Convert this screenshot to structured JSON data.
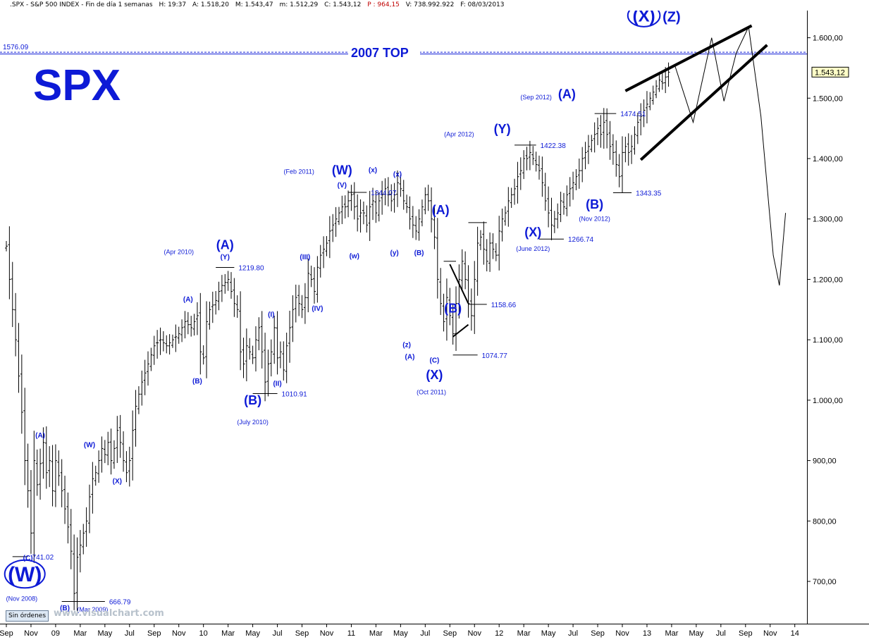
{
  "header": {
    "symbol": ".SPX - S&P 500 INDEX - Fin de día 1 semanas",
    "h": "H: 19:37",
    "a": "A: 1.518,20",
    "m": "M: 1.543,47",
    "min": "m: 1.512,29",
    "c": "C: 1.543,12",
    "p": "P : 964,15",
    "v": "V: 738.992.922",
    "f": "F: 08/03/2013"
  },
  "title": "SPX",
  "top_line": {
    "label": "2007 TOP",
    "value_text": "1576.09",
    "value": 1576.09
  },
  "current_price": {
    "label": "1.543,12",
    "value": 1543.12
  },
  "toolbar": {
    "orders_label": "Sin órdenes"
  },
  "watermark": "www.visualchart.com",
  "colors": {
    "wave": "#0d1ad6",
    "price_bar": "#000000",
    "background": "#ffffff"
  },
  "chart_data": {
    "type": "bar",
    "ylim": [
      630,
      1645
    ],
    "y_ticks": [
      {
        "v": 700,
        "label": "700,00"
      },
      {
        "v": 800,
        "label": "800,00"
      },
      {
        "v": 900,
        "label": "900,00"
      },
      {
        "v": 1000,
        "label": "1.000,00"
      },
      {
        "v": 1100,
        "label": "1.100,00"
      },
      {
        "v": 1200,
        "label": "1.200,00"
      },
      {
        "v": 1300,
        "label": "1.300,00"
      },
      {
        "v": 1400,
        "label": "1.400,00"
      },
      {
        "v": 1500,
        "label": "1.500,00"
      },
      {
        "v": 1600,
        "label": "1.600,00"
      }
    ],
    "x_ticks": [
      {
        "t": 0,
        "label": "Sep"
      },
      {
        "t": 8,
        "label": "Nov"
      },
      {
        "t": 16,
        "label": "09"
      },
      {
        "t": 24,
        "label": "Mar"
      },
      {
        "t": 32,
        "label": "May"
      },
      {
        "t": 40,
        "label": "Jul"
      },
      {
        "t": 48,
        "label": "Sep"
      },
      {
        "t": 56,
        "label": "Nov"
      },
      {
        "t": 64,
        "label": "10"
      },
      {
        "t": 72,
        "label": "Mar"
      },
      {
        "t": 80,
        "label": "May"
      },
      {
        "t": 88,
        "label": "Jul"
      },
      {
        "t": 96,
        "label": "Sep"
      },
      {
        "t": 104,
        "label": "Nov"
      },
      {
        "t": 112,
        "label": "11"
      },
      {
        "t": 120,
        "label": "Mar"
      },
      {
        "t": 128,
        "label": "May"
      },
      {
        "t": 136,
        "label": "Jul"
      },
      {
        "t": 144,
        "label": "Sep"
      },
      {
        "t": 152,
        "label": "Nov"
      },
      {
        "t": 160,
        "label": "12"
      },
      {
        "t": 168,
        "label": "Mar"
      },
      {
        "t": 176,
        "label": "May"
      },
      {
        "t": 184,
        "label": "Jul"
      },
      {
        "t": 192,
        "label": "Sep"
      },
      {
        "t": 200,
        "label": "Nov"
      },
      {
        "t": 208,
        "label": "13"
      },
      {
        "t": 216,
        "label": "Mar"
      },
      {
        "t": 224,
        "label": "May"
      },
      {
        "t": 232,
        "label": "Jul"
      },
      {
        "t": 240,
        "label": "Sep"
      },
      {
        "t": 248,
        "label": "Nov"
      },
      {
        "t": 256,
        "label": "14"
      }
    ],
    "anchors": [
      [
        0,
        1255
      ],
      [
        1,
        1200
      ],
      [
        3,
        1100
      ],
      [
        5,
        980
      ],
      [
        6,
        900
      ],
      [
        7,
        850
      ],
      [
        8,
        780
      ],
      [
        9,
        900
      ],
      [
        10,
        860
      ],
      [
        12,
        930
      ],
      [
        13,
        880
      ],
      [
        14,
        900
      ],
      [
        15,
        850
      ],
      [
        16,
        900
      ],
      [
        18,
        850
      ],
      [
        20,
        790
      ],
      [
        21,
        750
      ],
      [
        22,
        680
      ],
      [
        23,
        740
      ],
      [
        24,
        760
      ],
      [
        26,
        800
      ],
      [
        27,
        840
      ],
      [
        28,
        870
      ],
      [
        29,
        880
      ],
      [
        30,
        900
      ],
      [
        31,
        920
      ],
      [
        32,
        910
      ],
      [
        33,
        930
      ],
      [
        34,
        900
      ],
      [
        35,
        920
      ],
      [
        36,
        950
      ],
      [
        37,
        930
      ],
      [
        38,
        900
      ],
      [
        39,
        880
      ],
      [
        40,
        900
      ],
      [
        41,
        950
      ],
      [
        42,
        990
      ],
      [
        44,
        1030
      ],
      [
        46,
        1060
      ],
      [
        48,
        1090
      ],
      [
        50,
        1100
      ],
      [
        52,
        1090
      ],
      [
        54,
        1100
      ],
      [
        56,
        1110
      ],
      [
        58,
        1130
      ],
      [
        60,
        1120
      ],
      [
        62,
        1140
      ],
      [
        63,
        1080
      ],
      [
        64,
        1070
      ],
      [
        65,
        1130
      ],
      [
        66,
        1150
      ],
      [
        68,
        1165
      ],
      [
        69,
        1180
      ],
      [
        70,
        1190
      ],
      [
        72,
        1200
      ],
      [
        73,
        1180
      ],
      [
        74,
        1160
      ],
      [
        75,
        1150
      ],
      [
        76,
        1080
      ],
      [
        77,
        1060
      ],
      [
        78,
        1090
      ],
      [
        80,
        1070
      ],
      [
        81,
        1100
      ],
      [
        82,
        1120
      ],
      [
        83,
        1080
      ],
      [
        84,
        1030
      ],
      [
        85,
        1060
      ],
      [
        86,
        1080
      ],
      [
        87,
        1120
      ],
      [
        88,
        1070
      ],
      [
        89,
        1080
      ],
      [
        90,
        1050
      ],
      [
        91,
        1090
      ],
      [
        92,
        1120
      ],
      [
        93,
        1150
      ],
      [
        94,
        1170
      ],
      [
        96,
        1150
      ],
      [
        97,
        1170
      ],
      [
        98,
        1210
      ],
      [
        99,
        1200
      ],
      [
        100,
        1180
      ],
      [
        101,
        1220
      ],
      [
        102,
        1240
      ],
      [
        103,
        1250
      ],
      [
        104,
        1260
      ],
      [
        105,
        1280
      ],
      [
        107,
        1300
      ],
      [
        108,
        1310
      ],
      [
        109,
        1320
      ],
      [
        110,
        1320
      ],
      [
        111,
        1330
      ],
      [
        112,
        1340
      ],
      [
        113,
        1320
      ],
      [
        114,
        1300
      ],
      [
        115,
        1310
      ],
      [
        116,
        1310
      ],
      [
        117,
        1290
      ],
      [
        118,
        1320
      ],
      [
        119,
        1330
      ],
      [
        120,
        1310
      ],
      [
        121,
        1330
      ],
      [
        122,
        1340
      ],
      [
        123,
        1350
      ],
      [
        124,
        1340
      ],
      [
        125,
        1330
      ],
      [
        126,
        1340
      ],
      [
        127,
        1360
      ],
      [
        128,
        1350
      ],
      [
        129,
        1330
      ],
      [
        130,
        1320
      ],
      [
        131,
        1300
      ],
      [
        132,
        1290
      ],
      [
        133,
        1280
      ],
      [
        134,
        1300
      ],
      [
        135,
        1320
      ],
      [
        136,
        1340
      ],
      [
        137,
        1330
      ],
      [
        138,
        1300
      ],
      [
        139,
        1270
      ],
      [
        140,
        1200
      ],
      [
        141,
        1160
      ],
      [
        142,
        1130
      ],
      [
        143,
        1170
      ],
      [
        144,
        1140
      ],
      [
        145,
        1110
      ],
      [
        146,
        1160
      ],
      [
        147,
        1200
      ],
      [
        148,
        1230
      ],
      [
        149,
        1200
      ],
      [
        150,
        1160
      ],
      [
        151,
        1140
      ],
      [
        152,
        1200
      ],
      [
        153,
        1260
      ],
      [
        154,
        1270
      ],
      [
        155,
        1250
      ],
      [
        156,
        1230
      ],
      [
        157,
        1260
      ],
      [
        158,
        1250
      ],
      [
        159,
        1240
      ],
      [
        160,
        1280
      ],
      [
        161,
        1300
      ],
      [
        162,
        1310
      ],
      [
        163,
        1330
      ],
      [
        164,
        1340
      ],
      [
        165,
        1350
      ],
      [
        166,
        1370
      ],
      [
        167,
        1380
      ],
      [
        168,
        1400
      ],
      [
        169,
        1400
      ],
      [
        170,
        1410
      ],
      [
        171,
        1400
      ],
      [
        172,
        1390
      ],
      [
        173,
        1380
      ],
      [
        174,
        1360
      ],
      [
        175,
        1330
      ],
      [
        176,
        1310
      ],
      [
        177,
        1290
      ],
      [
        178,
        1300
      ],
      [
        179,
        1310
      ],
      [
        180,
        1330
      ],
      [
        181,
        1320
      ],
      [
        182,
        1340
      ],
      [
        183,
        1350
      ],
      [
        184,
        1360
      ],
      [
        185,
        1370
      ],
      [
        186,
        1380
      ],
      [
        187,
        1400
      ],
      [
        188,
        1410
      ],
      [
        189,
        1420
      ],
      [
        190,
        1430
      ],
      [
        191,
        1440
      ],
      [
        192,
        1450
      ],
      [
        193,
        1440
      ],
      [
        194,
        1460
      ],
      [
        195,
        1440
      ],
      [
        196,
        1420
      ],
      [
        197,
        1410
      ],
      [
        198,
        1390
      ],
      [
        199,
        1370
      ],
      [
        200,
        1410
      ],
      [
        201,
        1420
      ],
      [
        202,
        1410
      ],
      [
        203,
        1420
      ],
      [
        204,
        1440
      ],
      [
        205,
        1460
      ],
      [
        206,
        1470
      ],
      [
        207,
        1480
      ],
      [
        208,
        1490
      ],
      [
        209,
        1500
      ],
      [
        210,
        1510
      ],
      [
        211,
        1520
      ],
      [
        212,
        1530
      ],
      [
        213,
        1525
      ],
      [
        214,
        1535
      ],
      [
        215,
        1543
      ]
    ],
    "projection": {
      "wave_path": [
        [
          217,
          1555
        ],
        [
          223,
          1460
        ],
        [
          229,
          1600
        ],
        [
          233,
          1495
        ],
        [
          237,
          1575
        ],
        [
          241,
          1618
        ],
        [
          245,
          1470
        ],
        [
          249,
          1240
        ],
        [
          251,
          1190
        ],
        [
          253,
          1310
        ]
      ],
      "lines": [
        [
          [
            201,
            1512
          ],
          [
            242,
            1620
          ]
        ],
        [
          [
            206,
            1398
          ],
          [
            247,
            1588
          ]
        ],
        [
          [
            145,
            1105
          ],
          [
            150,
            1125
          ]
        ],
        [
          [
            144,
            1225
          ],
          [
            150,
            1160
          ]
        ]
      ]
    },
    "pivot_lines": [
      {
        "t0": 2,
        "t1": 7,
        "v": 741.02,
        "label": "741.02"
      },
      {
        "t0": 18,
        "t1": 32,
        "v": 666.79,
        "label": "666.79"
      },
      {
        "t0": 68,
        "t1": 74,
        "v": 1219.8,
        "label": "1219.80"
      },
      {
        "t0": 80,
        "t1": 88,
        "v": 1010.91,
        "label": "1010.91"
      },
      {
        "t0": 111,
        "t1": 117,
        "v": 1344.07,
        "label": "1344.07"
      },
      {
        "t0": 145,
        "t1": 153,
        "v": 1074.77,
        "label": "1074.77"
      },
      {
        "t0": 150,
        "t1": 156,
        "v": 1294,
        "label": ""
      },
      {
        "t0": 150,
        "t1": 156,
        "v": 1158.66,
        "label": "1158.66"
      },
      {
        "t0": 165,
        "t1": 172,
        "v": 1422.38,
        "label": "1422.38"
      },
      {
        "t0": 173,
        "t1": 181,
        "v": 1266.74,
        "label": "1266.74"
      },
      {
        "t0": 191,
        "t1": 198,
        "v": 1474.51,
        "label": "1474.51"
      },
      {
        "t0": 197,
        "t1": 203,
        "v": 1343.35,
        "label": "1343.35"
      },
      {
        "t0": 142,
        "t1": 146,
        "v": 1230,
        "label": ""
      }
    ],
    "annotations": [
      {
        "t": 7,
        "v": 735,
        "text": "(C)",
        "size": 10
      },
      {
        "t": 6,
        "v": 700,
        "text": "(W)",
        "size": 30,
        "ring": true
      },
      {
        "t": 5,
        "v": 668,
        "text": "(Nov 2008)",
        "size": 9
      },
      {
        "t": 19,
        "v": 652,
        "text": "(B)",
        "size": 10
      },
      {
        "t": 28,
        "v": 650,
        "text": "(Mar 2009)",
        "size": 9
      },
      {
        "t": 11,
        "v": 938,
        "text": "(A)",
        "size": 10
      },
      {
        "t": 27,
        "v": 922,
        "text": "(W)",
        "size": 10
      },
      {
        "t": 36,
        "v": 862,
        "text": "(X)",
        "size": 10
      },
      {
        "t": 56,
        "v": 1242,
        "text": "(Apr 2010)",
        "size": 9
      },
      {
        "t": 71,
        "v": 1250,
        "text": "(A)",
        "size": 18
      },
      {
        "t": 71,
        "v": 1233,
        "text": "(Y)",
        "size": 10
      },
      {
        "t": 59,
        "v": 1163,
        "text": "(A)",
        "size": 10
      },
      {
        "t": 62,
        "v": 1028,
        "text": "(B)",
        "size": 10
      },
      {
        "t": 80,
        "v": 993,
        "text": "(B)",
        "size": 18
      },
      {
        "t": 80,
        "v": 960,
        "text": "(July 2010)",
        "size": 9
      },
      {
        "t": 86,
        "v": 1138,
        "text": "(I)",
        "size": 10
      },
      {
        "t": 88,
        "v": 1024,
        "text": "(II)",
        "size": 10
      },
      {
        "t": 97,
        "v": 1233,
        "text": "(III)",
        "size": 10
      },
      {
        "t": 101,
        "v": 1148,
        "text": "(IV)",
        "size": 10
      },
      {
        "t": 95,
        "v": 1375,
        "text": "(Feb 2011)",
        "size": 9
      },
      {
        "t": 109,
        "v": 1374,
        "text": "(W)",
        "size": 18
      },
      {
        "t": 109,
        "v": 1352,
        "text": "(V)",
        "size": 10
      },
      {
        "t": 119,
        "v": 1377,
        "text": "(x)",
        "size": 10
      },
      {
        "t": 127,
        "v": 1370,
        "text": "(x)",
        "size": 10
      },
      {
        "t": 113,
        "v": 1235,
        "text": "(w)",
        "size": 10
      },
      {
        "t": 126,
        "v": 1240,
        "text": "(y)",
        "size": 10
      },
      {
        "t": 134,
        "v": 1240,
        "text": "(B)",
        "size": 10
      },
      {
        "t": 130,
        "v": 1088,
        "text": "(z)",
        "size": 10
      },
      {
        "t": 131,
        "v": 1068,
        "text": "(A)",
        "size": 10
      },
      {
        "t": 139,
        "v": 1062,
        "text": "(C)",
        "size": 10
      },
      {
        "t": 139,
        "v": 1035,
        "text": "(X)",
        "size": 18
      },
      {
        "t": 138,
        "v": 1010,
        "text": "(Oct 2011)",
        "size": 9
      },
      {
        "t": 141,
        "v": 1308,
        "text": "(A)",
        "size": 18
      },
      {
        "t": 145,
        "v": 1145,
        "text": "(B)",
        "size": 18
      },
      {
        "t": 147,
        "v": 1437,
        "text": "(Apr 2012)",
        "size": 9
      },
      {
        "t": 161,
        "v": 1442,
        "text": "(Y)",
        "size": 18
      },
      {
        "t": 171,
        "v": 1271,
        "text": "(X)",
        "size": 18
      },
      {
        "t": 171,
        "v": 1247,
        "text": "(June 2012)",
        "size": 9
      },
      {
        "t": 172,
        "v": 1498,
        "text": "(Sep 2012)",
        "size": 9
      },
      {
        "t": 182,
        "v": 1500,
        "text": "(A)",
        "size": 18
      },
      {
        "t": 191,
        "v": 1317,
        "text": "(B)",
        "size": 18
      },
      {
        "t": 191,
        "v": 1297,
        "text": "(Nov 2012)",
        "size": 9
      },
      {
        "t": 207,
        "v": 1627,
        "text": "(X)",
        "size": 24,
        "ring": true
      },
      {
        "t": 216,
        "v": 1627,
        "text": "(Z)",
        "size": 20
      }
    ]
  }
}
